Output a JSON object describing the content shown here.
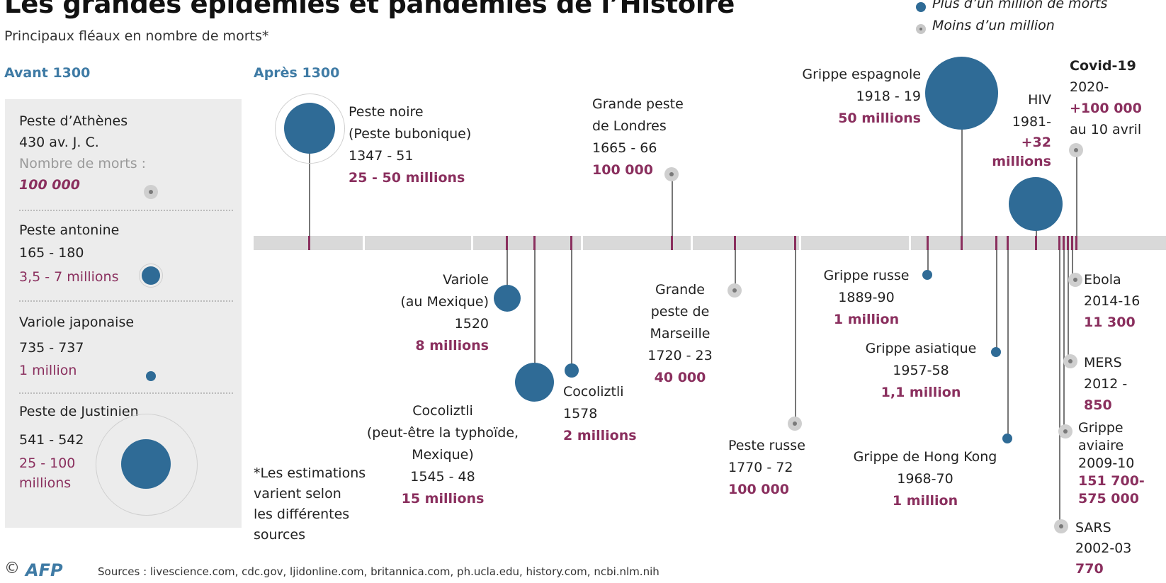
{
  "title": "Les grandes épidémies et pandémies de l’Histoire",
  "subtitle": "Principaux fléaux en nombre de morts*",
  "legend": {
    "big": "Plus d’un million de morts",
    "small": "Moins d’un million"
  },
  "sections": {
    "before": "Avant 1300",
    "after": "Après 1300"
  },
  "before_1300": [
    {
      "name": "Peste d’Athènes",
      "dates": "430 av. J. C.",
      "deaths_label": "Nombre de morts :",
      "deaths": "100 000"
    },
    {
      "name": "Peste antonine",
      "dates": "165 - 180",
      "deaths": "3,5 - 7 millions"
    },
    {
      "name": "Variole japonaise",
      "dates": "735 - 737",
      "deaths": "1 million"
    },
    {
      "name": "Peste de Justinien",
      "dates": "541 - 542",
      "deaths_line1": "25 - 100",
      "deaths_line2": "millions"
    }
  ],
  "events": {
    "peste_noire": {
      "l1": "Peste noire",
      "l2": "(Peste bubonique)",
      "dates": "1347 - 51",
      "deaths": "25 - 50 millions"
    },
    "londres": {
      "l1": "Grande peste",
      "l2": "de Londres",
      "dates": "1665 - 66",
      "deaths": "100 000"
    },
    "espagnole": {
      "name": "Grippe espagnole",
      "dates": "1918 - 19",
      "deaths": "50 millions"
    },
    "hiv": {
      "name": "HIV",
      "dates": "1981-",
      "deaths_l1": "+32",
      "deaths_l2": "millions"
    },
    "covid": {
      "name": "Covid-19",
      "dates": "2020-",
      "deaths": "+100 000",
      "note": "au 10 avril"
    },
    "variole_mexique": {
      "l1": "Variole",
      "l2": "(au Mexique)",
      "dates": "1520",
      "deaths": "8 millions"
    },
    "cocoliztli_1545": {
      "l1": "Cocoliztli",
      "l2": "(peut-être la typhoïde,",
      "l3": "Mexique)",
      "dates": "1545 - 48",
      "deaths": "15 millions"
    },
    "cocoliztli_1578": {
      "name": "Cocoliztli",
      "dates": "1578",
      "deaths": "2 millions"
    },
    "marseille": {
      "l1": "Grande",
      "l2": "peste de",
      "l3": "Marseille",
      "dates": "1720 - 23",
      "deaths": "40 000"
    },
    "peste_russe": {
      "name": "Peste russe",
      "dates": "1770 - 72",
      "deaths": "100 000"
    },
    "grippe_russe": {
      "name": "Grippe russe",
      "dates": "1889-90",
      "deaths": "1 million"
    },
    "grippe_asiatique": {
      "name": "Grippe asiatique",
      "dates": "1957-58",
      "deaths": "1,1 million"
    },
    "hong_kong": {
      "name": "Grippe de Hong Kong",
      "dates": "1968-70",
      "deaths": "1 million"
    },
    "ebola": {
      "name": "Ebola",
      "dates": "2014-16",
      "deaths": "11 300"
    },
    "mers": {
      "name": "MERS",
      "dates": "2012 -",
      "deaths": "850"
    },
    "aviaire": {
      "l1": "Grippe",
      "l2": "aviaire",
      "dates": "2009-10",
      "deaths_l1": "151 700-",
      "deaths_l2": "575 000"
    },
    "sars": {
      "name": "SARS",
      "dates": "2002-03",
      "deaths": "770"
    }
  },
  "footnote": {
    "l1": "*Les estimations",
    "l2": "varient selon",
    "l3": "les différentes",
    "l4": "sources"
  },
  "sources": "Sources : livescience.com, cdc.gov, ljidonline.com, britannica.com, ph.ucla.edu, history.com, ncbi.nlm.nih",
  "copyright": "©",
  "agency": "AFP",
  "colors": {
    "blue": "#2f6b96",
    "accent": "#8a2f5e",
    "grey": "#cfcfcf",
    "panel": "#ececec"
  }
}
